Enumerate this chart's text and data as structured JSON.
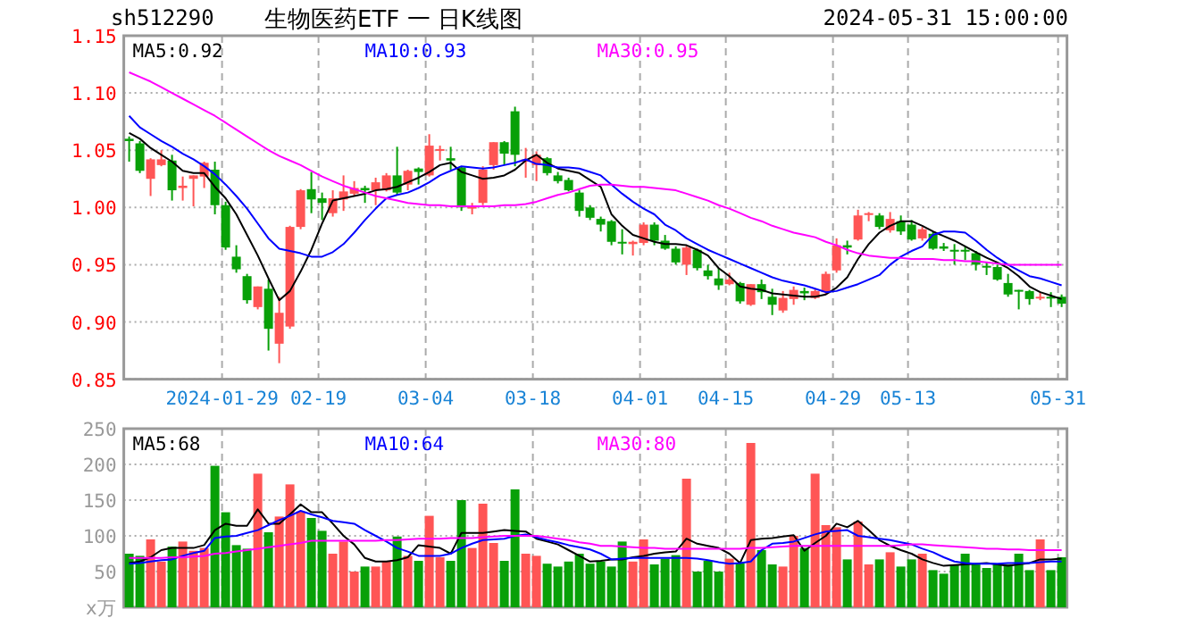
{
  "chart_data": [
    {
      "type": "candlestick",
      "title": "生物医药ETF 一 日K线图",
      "subtitle": "sh512290",
      "annotations": [
        "2024-05-31 15:00:00"
      ],
      "categories": [
        null,
        null,
        null,
        null,
        null,
        null,
        null,
        null,
        null,
        "2024-01-29",
        null,
        null,
        null,
        null,
        null,
        null,
        null,
        null,
        "02-19",
        null,
        null,
        null,
        null,
        null,
        null,
        null,
        null,
        null,
        "03-04",
        null,
        null,
        null,
        null,
        null,
        null,
        null,
        null,
        null,
        "03-18",
        null,
        null,
        null,
        null,
        null,
        null,
        null,
        null,
        null,
        "04-01",
        null,
        null,
        null,
        null,
        null,
        null,
        null,
        "04-15",
        null,
        null,
        null,
        null,
        null,
        null,
        null,
        null,
        null,
        "04-29",
        null,
        null,
        null,
        null,
        null,
        null,
        "05-13",
        null,
        null,
        null,
        null,
        null,
        null,
        null,
        null,
        null,
        null,
        null,
        null,
        null,
        "05-31"
      ],
      "ohlc": [
        [
          1.06,
          1.062,
          1.04,
          1.058
        ],
        [
          1.056,
          1.058,
          1.03,
          1.032
        ],
        [
          1.025,
          1.043,
          1.01,
          1.042
        ],
        [
          1.037,
          1.05,
          1.036,
          1.042
        ],
        [
          1.041,
          1.046,
          1.006,
          1.015
        ],
        [
          1.017,
          1.027,
          1.006,
          1.019
        ],
        [
          1.025,
          1.028,
          1.001,
          1.028
        ],
        [
          1.027,
          1.04,
          1.017,
          1.039
        ],
        [
          1.033,
          1.04,
          0.994,
          1.002
        ],
        [
          1.002,
          1.005,
          0.963,
          0.965
        ],
        [
          0.957,
          0.967,
          0.943,
          0.946
        ],
        [
          0.94,
          0.942,
          0.916,
          0.919
        ],
        [
          0.913,
          0.931,
          0.911,
          0.931
        ],
        [
          0.929,
          0.937,
          0.875,
          0.894
        ],
        [
          0.881,
          0.922,
          0.864,
          0.908
        ],
        [
          0.896,
          0.984,
          0.894,
          0.983
        ],
        [
          0.983,
          1.016,
          0.981,
          1.015
        ],
        [
          1.016,
          1.031,
          0.995,
          1.007
        ],
        [
          1.008,
          1.013,
          0.989,
          1.004
        ],
        [
          0.995,
          1.015,
          0.992,
          1.008
        ],
        [
          1.007,
          1.028,
          0.997,
          1.014
        ],
        [
          1.012,
          1.023,
          1.01,
          1.017
        ],
        [
          1.017,
          1.019,
          1.004,
          1.015
        ],
        [
          1.015,
          1.026,
          1.002,
          1.022
        ],
        [
          1.015,
          1.03,
          1.014,
          1.028
        ],
        [
          1.028,
          1.053,
          1.011,
          1.013
        ],
        [
          1.02,
          1.033,
          1.015,
          1.032
        ],
        [
          1.034,
          1.035,
          1.02,
          1.031
        ],
        [
          1.028,
          1.064,
          1.027,
          1.054
        ],
        [
          1.05,
          1.054,
          1.041,
          1.051
        ],
        [
          1.043,
          1.053,
          1.033,
          1.041
        ],
        [
          1.035,
          1.036,
          0.997,
          1.0
        ],
        [
          0.999,
          1.004,
          0.994,
          1.001
        ],
        [
          1.004,
          1.036,
          1.002,
          1.033
        ],
        [
          1.037,
          1.057,
          1.033,
          1.057
        ],
        [
          1.057,
          1.058,
          1.037,
          1.047
        ],
        [
          1.084,
          1.088,
          1.036,
          1.046
        ],
        [
          1.04,
          1.052,
          1.026,
          1.042
        ],
        [
          1.037,
          1.049,
          1.023,
          1.046
        ],
        [
          1.043,
          1.044,
          1.028,
          1.03
        ],
        [
          1.028,
          1.031,
          1.021,
          1.023
        ],
        [
          1.024,
          1.026,
          1.014,
          1.015
        ],
        [
          1.013,
          1.015,
          0.992,
          0.997
        ],
        [
          1.0,
          1.002,
          0.989,
          0.991
        ],
        [
          0.99,
          0.992,
          0.979,
          0.985
        ],
        [
          0.988,
          0.989,
          0.967,
          0.97
        ],
        [
          0.97,
          0.981,
          0.959,
          0.969
        ],
        [
          0.968,
          0.971,
          0.958,
          0.97
        ],
        [
          0.969,
          0.987,
          0.967,
          0.985
        ],
        [
          0.985,
          0.987,
          0.967,
          0.971
        ],
        [
          0.971,
          0.976,
          0.963,
          0.964
        ],
        [
          0.964,
          0.966,
          0.95,
          0.952
        ],
        [
          0.95,
          0.967,
          0.941,
          0.965
        ],
        [
          0.963,
          0.964,
          0.945,
          0.947
        ],
        [
          0.945,
          0.95,
          0.937,
          0.94
        ],
        [
          0.938,
          0.947,
          0.928,
          0.932
        ],
        [
          0.933,
          0.943,
          0.932,
          0.937
        ],
        [
          0.934,
          0.935,
          0.916,
          0.918
        ],
        [
          0.915,
          0.933,
          0.914,
          0.933
        ],
        [
          0.933,
          0.937,
          0.92,
          0.926
        ],
        [
          0.922,
          0.929,
          0.906,
          0.915
        ],
        [
          0.91,
          0.927,
          0.908,
          0.921
        ],
        [
          0.92,
          0.931,
          0.915,
          0.928
        ],
        [
          0.927,
          0.93,
          0.919,
          0.925
        ],
        [
          0.921,
          0.929,
          0.92,
          0.927
        ],
        [
          0.926,
          0.944,
          0.924,
          0.942
        ],
        [
          0.945,
          0.973,
          0.943,
          0.967
        ],
        [
          0.967,
          0.971,
          0.959,
          0.965
        ],
        [
          0.972,
          0.998,
          0.971,
          0.993
        ],
        [
          0.994,
          0.996,
          0.988,
          0.995
        ],
        [
          0.993,
          0.995,
          0.981,
          0.983
        ],
        [
          0.98,
          0.996,
          0.978,
          0.99
        ],
        [
          0.988,
          0.993,
          0.976,
          0.979
        ],
        [
          0.985,
          0.989,
          0.971,
          0.972
        ],
        [
          0.973,
          0.983,
          0.971,
          0.981
        ],
        [
          0.977,
          0.979,
          0.963,
          0.964
        ],
        [
          0.966,
          0.969,
          0.962,
          0.964
        ],
        [
          0.963,
          0.968,
          0.95,
          0.962
        ],
        [
          0.963,
          0.966,
          0.954,
          0.962
        ],
        [
          0.96,
          0.962,
          0.945,
          0.95
        ],
        [
          0.949,
          0.952,
          0.941,
          0.948
        ],
        [
          0.948,
          0.95,
          0.936,
          0.937
        ],
        [
          0.934,
          0.942,
          0.922,
          0.924
        ],
        [
          0.928,
          0.928,
          0.911,
          0.927
        ],
        [
          0.927,
          0.928,
          0.915,
          0.92
        ],
        [
          0.921,
          0.926,
          0.919,
          0.922
        ],
        [
          0.922,
          0.926,
          0.913,
          0.921
        ],
        [
          0.922,
          0.924,
          0.913,
          0.916
        ]
      ],
      "colors": [
        "#08a008",
        "#08a008",
        "#ff5555",
        "#ff5555",
        "#08a008",
        "#ff5555",
        "#ff5555",
        "#ff5555",
        "#08a008",
        "#08a008",
        "#08a008",
        "#08a008",
        "#ff5555",
        "#08a008",
        "#ff5555",
        "#ff5555",
        "#ff5555",
        "#08a008",
        "#08a008",
        "#ff5555",
        "#ff5555",
        "#ff5555",
        "#08a008",
        "#ff5555",
        "#ff5555",
        "#08a008",
        "#ff5555",
        "#08a008",
        "#ff5555",
        "#ff5555",
        "#08a008",
        "#08a008",
        "#ff5555",
        "#ff5555",
        "#ff5555",
        "#08a008",
        "#08a008",
        "#ff5555",
        "#ff5555",
        "#08a008",
        "#08a008",
        "#08a008",
        "#08a008",
        "#08a008",
        "#08a008",
        "#08a008",
        "#08a008",
        "#ff5555",
        "#ff5555",
        "#08a008",
        "#08a008",
        "#08a008",
        "#ff5555",
        "#08a008",
        "#08a008",
        "#08a008",
        "#ff5555",
        "#08a008",
        "#ff5555",
        "#08a008",
        "#08a008",
        "#ff5555",
        "#ff5555",
        "#08a008",
        "#ff5555",
        "#ff5555",
        "#ff5555",
        "#08a008",
        "#ff5555",
        "#ff5555",
        "#08a008",
        "#ff5555",
        "#08a008",
        "#08a008",
        "#ff5555",
        "#08a008",
        "#08a008",
        "#08a008",
        "#08a008",
        "#08a008",
        "#08a008",
        "#08a008",
        "#08a008",
        "#08a008",
        "#08a008",
        "#ff5555",
        "#08a008",
        "#08a008"
      ],
      "series": [
        {
          "type": "line",
          "name": "MA5:0.92",
          "color": "#000000",
          "values": [
            1.065,
            1.06,
            1.052,
            1.046,
            1.04,
            1.032,
            1.03,
            1.03,
            1.018,
            1.008,
            0.994,
            0.976,
            0.958,
            0.938,
            0.919,
            0.927,
            0.944,
            0.963,
            0.986,
            1.006,
            1.008,
            1.01,
            1.012,
            1.015,
            1.016,
            1.018,
            1.022,
            1.026,
            1.031,
            1.037,
            1.039,
            1.031,
            1.028,
            1.025,
            1.026,
            1.028,
            1.033,
            1.041,
            1.046,
            1.039,
            1.034,
            1.032,
            1.03,
            1.024,
            1.018,
            0.994,
            0.984,
            0.976,
            0.973,
            0.97,
            0.968,
            0.968,
            0.967,
            0.963,
            0.958,
            0.947,
            0.94,
            0.931,
            0.929,
            0.928,
            0.925,
            0.924,
            0.923,
            0.922,
            0.922,
            0.924,
            0.93,
            0.939,
            0.955,
            0.968,
            0.978,
            0.984,
            0.988,
            0.988,
            0.984,
            0.979,
            0.975,
            0.971,
            0.966,
            0.961,
            0.956,
            0.952,
            0.947,
            0.94,
            0.931,
            0.926,
            0.923,
            0.92
          ]
        },
        {
          "type": "line",
          "name": "MA10:0.93",
          "color": "#0000ff",
          "values": [
            1.08,
            1.07,
            1.064,
            1.058,
            1.053,
            1.047,
            1.042,
            1.036,
            1.029,
            1.02,
            1.01,
            0.999,
            0.986,
            0.973,
            0.964,
            0.962,
            0.96,
            0.957,
            0.957,
            0.961,
            0.968,
            0.978,
            0.989,
            0.999,
            1.008,
            1.011,
            1.013,
            1.017,
            1.022,
            1.028,
            1.032,
            1.036,
            1.035,
            1.034,
            1.035,
            1.037,
            1.039,
            1.042,
            1.038,
            1.037,
            1.035,
            1.035,
            1.034,
            1.031,
            1.028,
            1.02,
            1.012,
            1.005,
            0.999,
            0.994,
            0.985,
            0.98,
            0.973,
            0.968,
            0.963,
            0.959,
            0.955,
            0.951,
            0.947,
            0.943,
            0.939,
            0.936,
            0.934,
            0.932,
            0.929,
            0.926,
            0.927,
            0.93,
            0.933,
            0.937,
            0.941,
            0.95,
            0.957,
            0.962,
            0.966,
            0.976,
            0.979,
            0.979,
            0.978,
            0.971,
            0.963,
            0.956,
            0.95,
            0.945,
            0.94,
            0.938,
            0.935,
            0.932
          ]
        },
        {
          "type": "line",
          "name": "MA30:0.95",
          "color": "#ff00ff",
          "values": [
            1.118,
            1.114,
            1.11,
            1.105,
            1.1,
            1.095,
            1.09,
            1.085,
            1.08,
            1.074,
            1.068,
            1.062,
            1.056,
            1.05,
            1.045,
            1.041,
            1.037,
            1.032,
            1.027,
            1.023,
            1.019,
            1.016,
            1.013,
            1.01,
            1.008,
            1.006,
            1.004,
            1.003,
            1.002,
            1.002,
            1.001,
            1.001,
            1.001,
            1.001,
            1.001,
            1.002,
            1.002,
            1.003,
            1.005,
            1.008,
            1.011,
            1.013,
            1.016,
            1.019,
            1.02,
            1.02,
            1.019,
            1.018,
            1.018,
            1.017,
            1.016,
            1.015,
            1.012,
            1.009,
            1.006,
            1.002,
            0.999,
            0.995,
            0.991,
            0.988,
            0.984,
            0.981,
            0.978,
            0.976,
            0.974,
            0.97,
            0.967,
            0.963,
            0.96,
            0.958,
            0.957,
            0.956,
            0.956,
            0.955,
            0.955,
            0.955,
            0.954,
            0.954,
            0.953,
            0.953,
            0.952,
            0.951,
            0.95,
            0.95,
            0.95,
            0.95,
            0.95,
            0.95
          ]
        }
      ],
      "ylim": [
        0.85,
        1.15
      ],
      "yticks": [
        0.85,
        {
          "value": 0.9,
          "label": "0.90"
        },
        0.95,
        {
          "value": 1.0,
          "label": "1.00"
        },
        1.05,
        {
          "value": 1.1,
          "label": "1.10"
        },
        1.15
      ],
      "grid": true,
      "legend": "top"
    },
    {
      "type": "bar",
      "categories": [
        null,
        null,
        null,
        null,
        null,
        null,
        null,
        null,
        null,
        null,
        null,
        null,
        null,
        null,
        null,
        null,
        null,
        null,
        null,
        null,
        null,
        null,
        null,
        null,
        null,
        null,
        null,
        null,
        null,
        null,
        null,
        null,
        null,
        null,
        null,
        null,
        null,
        null,
        null,
        null,
        null,
        null,
        null,
        null,
        null,
        null,
        null,
        null,
        null,
        null,
        null,
        null,
        null,
        null,
        null,
        null,
        null,
        null,
        null,
        null,
        null,
        null,
        null,
        null,
        null,
        null,
        null,
        null,
        null,
        null,
        null,
        null,
        null,
        null,
        null,
        null,
        null,
        null,
        null,
        null,
        null,
        null,
        null,
        null,
        null,
        null,
        null,
        null
      ],
      "series": [
        {
          "type": "bar",
          "colors": [
            "#08a008",
            "#08a008",
            "#ff5555",
            "#ff5555",
            "#08a008",
            "#ff5555",
            "#ff5555",
            "#ff5555",
            "#08a008",
            "#08a008",
            "#08a008",
            "#08a008",
            "#ff5555",
            "#08a008",
            "#ff5555",
            "#ff5555",
            "#ff5555",
            "#08a008",
            "#08a008",
            "#ff5555",
            "#ff5555",
            "#ff5555",
            "#08a008",
            "#ff5555",
            "#ff5555",
            "#08a008",
            "#ff5555",
            "#08a008",
            "#ff5555",
            "#ff5555",
            "#08a008",
            "#08a008",
            "#ff5555",
            "#ff5555",
            "#ff5555",
            "#08a008",
            "#08a008",
            "#ff5555",
            "#ff5555",
            "#08a008",
            "#08a008",
            "#08a008",
            "#08a008",
            "#08a008",
            "#08a008",
            "#08a008",
            "#08a008",
            "#ff5555",
            "#ff5555",
            "#08a008",
            "#08a008",
            "#08a008",
            "#ff5555",
            "#08a008",
            "#08a008",
            "#08a008",
            "#ff5555",
            "#08a008",
            "#ff5555",
            "#08a008",
            "#08a008",
            "#ff5555",
            "#ff5555",
            "#08a008",
            "#ff5555",
            "#ff5555",
            "#ff5555",
            "#08a008",
            "#ff5555",
            "#ff5555",
            "#08a008",
            "#ff5555",
            "#08a008",
            "#08a008",
            "#ff5555",
            "#08a008",
            "#08a008",
            "#08a008",
            "#08a008",
            "#08a008",
            "#08a008",
            "#08a008",
            "#08a008",
            "#08a008",
            "#08a008",
            "#ff5555",
            "#08a008",
            "#08a008"
          ],
          "values": [
            75,
            72,
            95,
            64,
            85,
            92,
            79,
            83,
            198,
            133,
            87,
            82,
            187,
            105,
            127,
            172,
            134,
            125,
            107,
            75,
            92,
            50,
            57,
            57,
            64,
            99,
            72,
            65,
            128,
            70,
            65,
            150,
            83,
            145,
            90,
            65,
            165,
            75,
            72,
            61,
            57,
            64,
            75,
            61,
            64,
            57,
            92,
            64,
            95,
            60,
            68,
            73,
            180,
            50,
            65,
            50,
            68,
            62,
            230,
            80,
            60,
            57,
            100,
            83,
            187,
            115,
            112,
            67,
            120,
            60,
            67,
            77,
            57,
            67,
            75,
            52,
            47,
            60,
            75,
            60,
            55,
            60,
            60,
            75,
            52,
            95,
            52,
            70
          ]
        },
        {
          "type": "line",
          "name": "MA5:68",
          "color": "#000000",
          "values": [
            62,
            64,
            70,
            80,
            83,
            83,
            83,
            87,
            108,
            117,
            114,
            114,
            137,
            117,
            117,
            130,
            144,
            133,
            133,
            117,
            100,
            88,
            69,
            64,
            64,
            66,
            70,
            87,
            85,
            83,
            75,
            104,
            104,
            104,
            106,
            108,
            107,
            106,
            96,
            92,
            88,
            80,
            72,
            64,
            65,
            67,
            67,
            70,
            72,
            75,
            77,
            78,
            96,
            89,
            86,
            83,
            75,
            62,
            94,
            96,
            97,
            99,
            101,
            79,
            90,
            100,
            117,
            112,
            121,
            108,
            94,
            86,
            80,
            75,
            67,
            62,
            58,
            59,
            60,
            61,
            62,
            60,
            58,
            60,
            62,
            67,
            67,
            68
          ]
        },
        {
          "type": "line",
          "name": "MA10:64",
          "color": "#0000ff",
          "values": [
            61,
            62,
            64,
            66,
            67,
            72,
            76,
            79,
            97,
            99,
            100,
            104,
            108,
            115,
            122,
            128,
            135,
            130,
            126,
            121,
            119,
            117,
            108,
            100,
            92,
            83,
            78,
            72,
            72,
            72,
            75,
            83,
            89,
            94,
            95,
            96,
            100,
            102,
            98,
            94,
            91,
            87,
            84,
            81,
            75,
            67,
            68,
            69,
            69,
            69,
            69,
            69,
            69,
            68,
            66,
            63,
            61,
            62,
            64,
            80,
            89,
            90,
            92,
            97,
            102,
            106,
            107,
            108,
            100,
            98,
            96,
            94,
            91,
            88,
            82,
            77,
            70,
            64,
            62,
            61,
            61,
            61,
            62,
            62,
            62,
            63,
            64,
            64
          ]
        },
        {
          "type": "line",
          "name": "MA30:80",
          "color": "#ff00ff",
          "values": [
            69,
            69,
            69,
            69,
            70,
            70,
            71,
            72,
            75,
            76,
            78,
            80,
            82,
            84,
            86,
            88,
            90,
            93,
            93,
            93,
            93,
            93,
            93,
            93,
            94,
            94,
            95,
            96,
            96,
            96,
            97,
            97,
            97,
            98,
            99,
            100,
            100,
            100,
            100,
            98,
            96,
            94,
            91,
            89,
            86,
            86,
            85,
            84,
            83,
            83,
            82,
            82,
            82,
            82,
            82,
            82,
            82,
            82,
            83,
            83,
            84,
            85,
            86,
            86,
            86,
            86,
            86,
            86,
            86,
            86,
            86,
            86,
            87,
            88,
            88,
            87,
            86,
            85,
            84,
            83,
            82,
            82,
            81,
            81,
            80,
            80,
            80,
            80
          ]
        }
      ],
      "ylim": [
        0,
        250
      ],
      "yticks": [
        {
          "value": 0,
          "label": "x万"
        },
        50,
        100,
        150,
        200,
        250
      ],
      "grid": true,
      "legend": "top",
      "tick_labels": "y"
    }
  ]
}
